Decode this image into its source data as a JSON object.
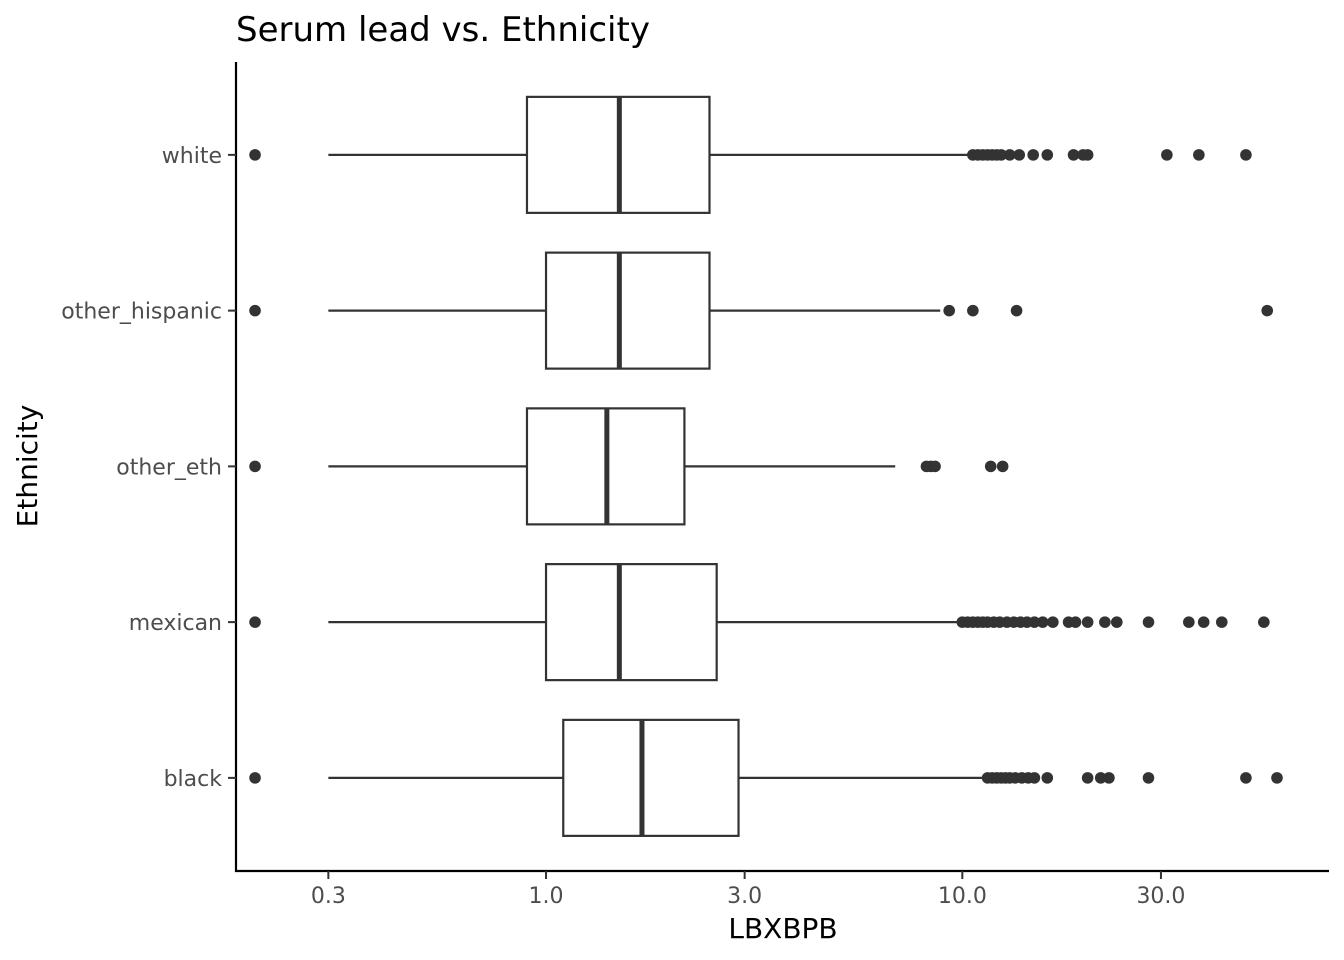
{
  "chart_data": {
    "type": "boxplot",
    "title": "Serum lead vs. Ethnicity",
    "xlabel": "LBXBPB",
    "ylabel": "Ethnicity",
    "x_scale": "log10",
    "xlim": [
      0.18,
      76
    ],
    "x_ticks": [
      {
        "value": 0.3,
        "label": "0.3"
      },
      {
        "value": 1.0,
        "label": "1.0"
      },
      {
        "value": 3.0,
        "label": "3.0"
      },
      {
        "value": 10.0,
        "label": "10.0"
      },
      {
        "value": 30.0,
        "label": "30.0"
      }
    ],
    "categories": [
      "white",
      "other_hispanic",
      "other_eth",
      "mexican",
      "black"
    ],
    "series": [
      {
        "category": "white",
        "whisker_low": 0.3,
        "q1": 0.9,
        "median": 1.5,
        "q3": 2.47,
        "whisker_high": 10.5,
        "outliers": [
          0.2,
          10.6,
          10.9,
          11.2,
          11.5,
          11.8,
          12.1,
          12.4,
          13.0,
          13.7,
          14.8,
          16.0,
          18.5,
          19.5,
          20.0,
          31.0,
          37.0,
          48.0
        ]
      },
      {
        "category": "other_hispanic",
        "whisker_low": 0.3,
        "q1": 1.0,
        "median": 1.5,
        "q3": 2.47,
        "whisker_high": 8.85,
        "outliers": [
          0.2,
          9.3,
          10.6,
          13.5,
          54.0
        ]
      },
      {
        "category": "other_eth",
        "whisker_low": 0.3,
        "q1": 0.9,
        "median": 1.4,
        "q3": 2.15,
        "whisker_high": 6.9,
        "outliers": [
          0.2,
          8.2,
          8.4,
          8.6,
          11.7,
          12.5
        ]
      },
      {
        "category": "mexican",
        "whisker_low": 0.3,
        "q1": 1.0,
        "median": 1.5,
        "q3": 2.57,
        "whisker_high": 9.9,
        "outliers": [
          0.2,
          10.0,
          10.3,
          10.6,
          10.9,
          11.2,
          11.5,
          11.9,
          12.3,
          12.8,
          13.3,
          13.8,
          14.3,
          14.9,
          15.6,
          16.5,
          18.0,
          18.7,
          20.0,
          22.0,
          23.5,
          28.0,
          35.0,
          38.0,
          42.0,
          53.0
        ]
      },
      {
        "category": "black",
        "whisker_low": 0.3,
        "q1": 1.1,
        "median": 1.7,
        "q3": 2.9,
        "whisker_high": 11.2,
        "outliers": [
          0.2,
          11.5,
          11.8,
          12.1,
          12.4,
          12.7,
          13.0,
          13.4,
          13.9,
          14.4,
          14.9,
          16.0,
          20.0,
          21.5,
          22.5,
          28.0,
          48.0,
          57.0
        ]
      }
    ]
  }
}
